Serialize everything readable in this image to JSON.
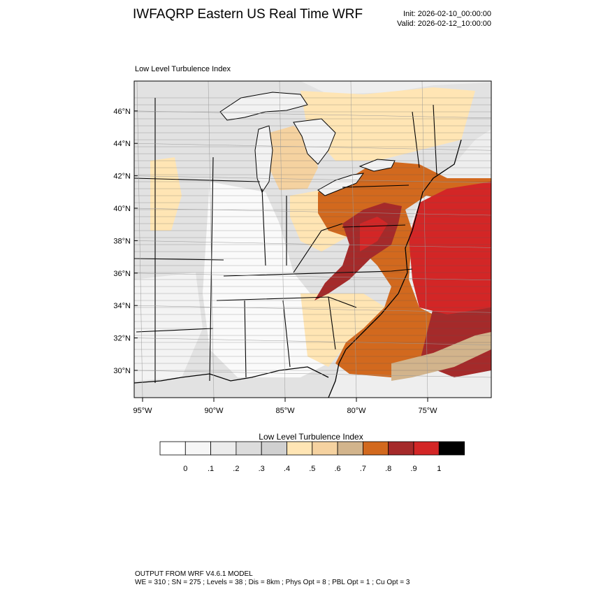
{
  "header": {
    "title": "IWFAQRP Eastern US Real Time WRF",
    "init": "Init: 2026-02-10_00:00:00",
    "valid": "Valid: 2026-02-12_10:00:00"
  },
  "map": {
    "field_label": "Low Level Turbulence Index",
    "projection": "lambert-conformal",
    "lat_range": [
      28.4,
      47.8
    ],
    "lon_range": [
      -95.5,
      -70.4
    ],
    "lat_ticks": [
      {
        "value": 30,
        "label": "30°N"
      },
      {
        "value": 32,
        "label": "32°N"
      },
      {
        "value": 34,
        "label": "34°N"
      },
      {
        "value": 36,
        "label": "36°N"
      },
      {
        "value": 38,
        "label": "38°N"
      },
      {
        "value": 40,
        "label": "40°N"
      },
      {
        "value": 42,
        "label": "42°N"
      },
      {
        "value": 44,
        "label": "44°N"
      },
      {
        "value": 46,
        "label": "46°N"
      }
    ],
    "lon_ticks": [
      {
        "value": -95,
        "label": "95°W"
      },
      {
        "value": -90,
        "label": "90°W"
      },
      {
        "value": -85,
        "label": "85°W"
      },
      {
        "value": -80,
        "label": "80°W"
      },
      {
        "value": -75,
        "label": "75°W"
      }
    ]
  },
  "colorbar": {
    "title": "Low Level Turbulence Index",
    "colors": [
      "#ffffff",
      "#f6f6f6",
      "#ececec",
      "#dcdcdc",
      "#d0d0d0",
      "#ffe5b4",
      "#f5d2a0",
      "#d2b48c",
      "#d2691e",
      "#a52a2a",
      "#d32626",
      "#000000"
    ],
    "labels": [
      "0",
      ".1",
      ".2",
      ".3",
      ".4",
      ".5",
      ".6",
      ".7",
      ".8",
      ".9",
      "1"
    ]
  },
  "footer": {
    "line1": "OUTPUT FROM WRF V4.6.1 MODEL",
    "line2": "WE = 310 ; SN = 275 ; Levels = 38 ; Dis = 8km ; Phys Opt = 8 ; PBL Opt = 1 ; Cu Opt = 3"
  }
}
